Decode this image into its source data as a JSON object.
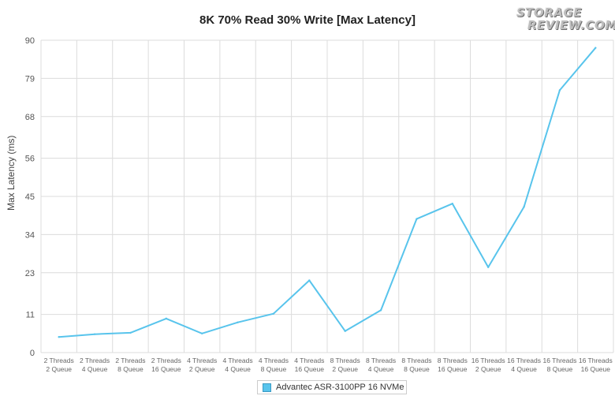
{
  "chart_data": {
    "type": "line",
    "title": "8K 70% Read 30% Write [Max Latency]",
    "xlabel": "",
    "ylabel": "Max Latency (ms)",
    "yticks": [
      "0",
      "11",
      "23",
      "34",
      "45",
      "56",
      "68",
      "79",
      "90"
    ],
    "ylim": [
      0,
      90
    ],
    "grid": true,
    "legend_position": "bottom",
    "categories": [
      [
        "2 Threads",
        "2 Queue"
      ],
      [
        "2 Threads",
        "4 Queue"
      ],
      [
        "2 Threads",
        "8 Queue"
      ],
      [
        "2 Threads",
        "16 Queue"
      ],
      [
        "4 Threads",
        "2 Queue"
      ],
      [
        "4 Threads",
        "4 Queue"
      ],
      [
        "4 Threads",
        "8 Queue"
      ],
      [
        "4 Threads",
        "16 Queue"
      ],
      [
        "8 Threads",
        "2 Queue"
      ],
      [
        "8 Threads",
        "4 Queue"
      ],
      [
        "8 Threads",
        "8 Queue"
      ],
      [
        "8 Threads",
        "16 Queue"
      ],
      [
        "16 Threads",
        "2 Queue"
      ],
      [
        "16 Threads",
        "4 Queue"
      ],
      [
        "16 Threads",
        "8 Queue"
      ],
      [
        "16 Threads",
        "16 Queue"
      ]
    ],
    "series": [
      {
        "name": "Advantec ASR-3100PP 16 NVMe",
        "color": "#58c4ec",
        "values": [
          4.5,
          5.3,
          5.7,
          9.8,
          5.5,
          8.7,
          11.2,
          20.8,
          6.2,
          12.2,
          38.5,
          42.9,
          24.6,
          42.0,
          75.6,
          87.8
        ]
      }
    ]
  },
  "logo": {
    "line1": "STORAGE",
    "line2": "REVIEW.COM"
  }
}
